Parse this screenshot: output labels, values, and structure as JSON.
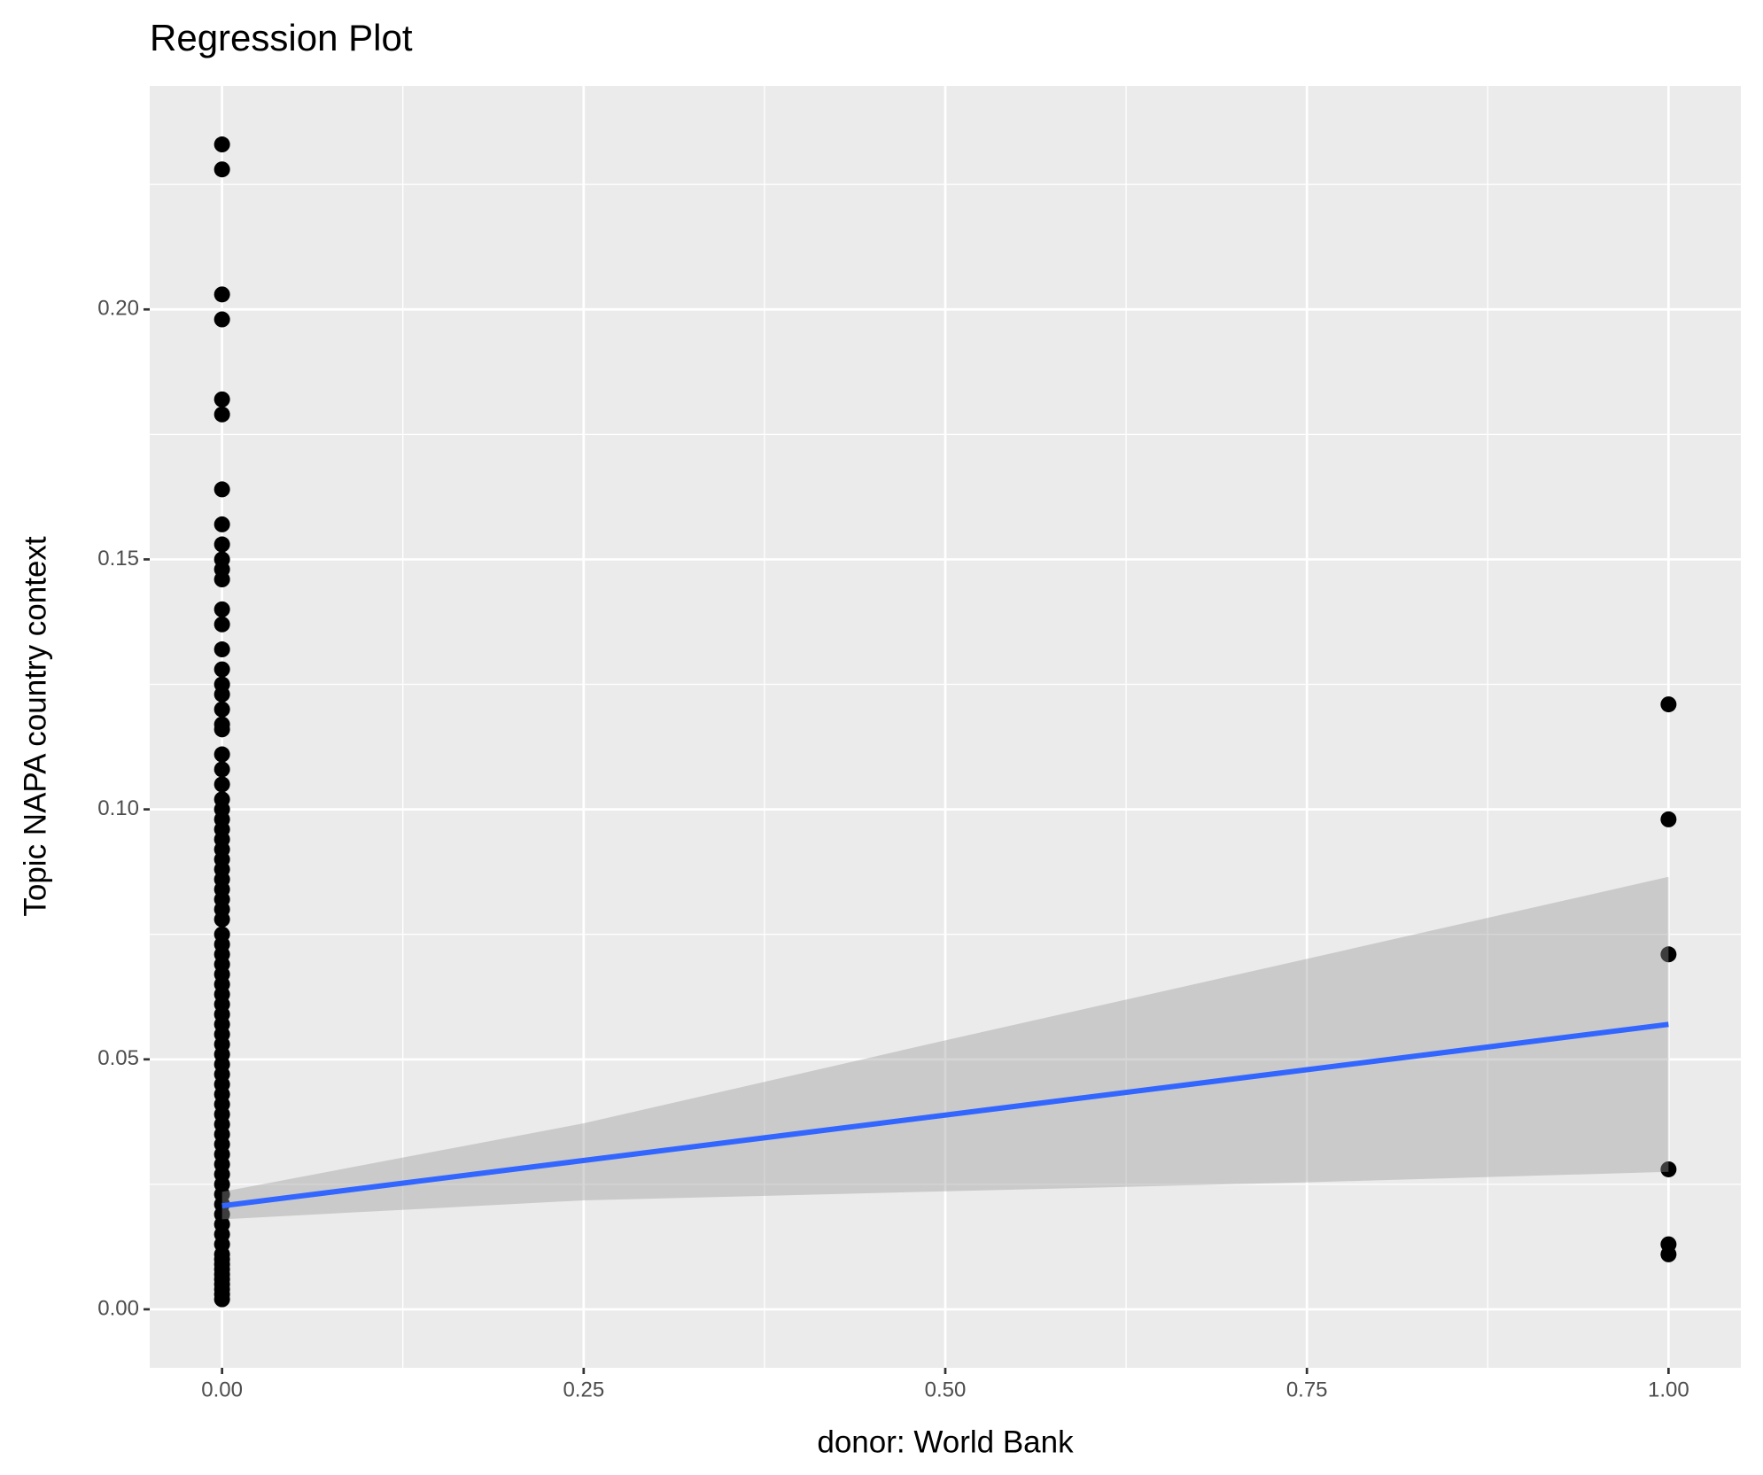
{
  "chart_data": {
    "type": "scatter",
    "title": "Regression Plot",
    "x_label": "donor: World Bank",
    "y_label": "Topic NAPA country context",
    "xlim": [
      -0.05,
      1.05
    ],
    "ylim": [
      -0.0117,
      0.2447
    ],
    "xticks": [
      {
        "value": 0,
        "label": "0.00"
      },
      {
        "value": 0.25,
        "label": "0.25"
      },
      {
        "value": 0.5,
        "label": "0.50"
      },
      {
        "value": 0.75,
        "label": "0.75"
      },
      {
        "value": 1,
        "label": "1.00"
      }
    ],
    "yticks": [
      {
        "value": 0,
        "label": "0.00"
      },
      {
        "value": 0.05,
        "label": "0.05"
      },
      {
        "value": 0.1,
        "label": "0.10"
      },
      {
        "value": 0.15,
        "label": "0.15"
      },
      {
        "value": 0.2,
        "label": "0.20"
      }
    ],
    "xminor": [
      0.125,
      0.375,
      0.625,
      0.875
    ],
    "yminor": [
      0.025,
      0.075,
      0.125,
      0.175,
      0.225
    ],
    "grid": true,
    "points": {
      "color": "#000000",
      "x": [
        0,
        0,
        0,
        0,
        0,
        0,
        0,
        0,
        0,
        0,
        0,
        0,
        0,
        0,
        0,
        0,
        0,
        0,
        0,
        0,
        0,
        0,
        0,
        0,
        0,
        0,
        0,
        0,
        0,
        0,
        0,
        0,
        0,
        0,
        0,
        0,
        0,
        0,
        0,
        0,
        0,
        0,
        0,
        0,
        0,
        0,
        0,
        0,
        0,
        0,
        0,
        0,
        0,
        0,
        0,
        0,
        0,
        0,
        0,
        0,
        0,
        0,
        0,
        0,
        0,
        0,
        0,
        0,
        0,
        0,
        0,
        0,
        0,
        0,
        0,
        0,
        0,
        0,
        0,
        1,
        1,
        1,
        1,
        1,
        1
      ],
      "y": [
        0.233,
        0.228,
        0.203,
        0.198,
        0.182,
        0.179,
        0.164,
        0.157,
        0.153,
        0.15,
        0.148,
        0.146,
        0.14,
        0.137,
        0.132,
        0.128,
        0.125,
        0.123,
        0.12,
        0.117,
        0.116,
        0.111,
        0.108,
        0.105,
        0.102,
        0.1,
        0.098,
        0.096,
        0.094,
        0.092,
        0.09,
        0.088,
        0.086,
        0.084,
        0.082,
        0.08,
        0.078,
        0.075,
        0.073,
        0.071,
        0.069,
        0.067,
        0.065,
        0.063,
        0.061,
        0.059,
        0.057,
        0.055,
        0.053,
        0.051,
        0.049,
        0.047,
        0.045,
        0.043,
        0.041,
        0.039,
        0.037,
        0.035,
        0.033,
        0.031,
        0.029,
        0.027,
        0.025,
        0.023,
        0.021,
        0.019,
        0.017,
        0.015,
        0.013,
        0.011,
        0.01,
        0.009,
        0.008,
        0.007,
        0.006,
        0.005,
        0.004,
        0.003,
        0.002,
        0.121,
        0.098,
        0.071,
        0.028,
        0.013,
        0.011
      ]
    },
    "fit": {
      "color": "#3366ff",
      "x": [
        0,
        1
      ],
      "y": [
        0.0207,
        0.057
      ]
    },
    "band": {
      "color": "#999999",
      "x": [
        0,
        0.25,
        0.5,
        0.75,
        1
      ],
      "lower": [
        0.018,
        0.0218,
        0.0236,
        0.0254,
        0.0275
      ],
      "upper": [
        0.0235,
        0.0372,
        0.0538,
        0.0701,
        0.0865
      ]
    }
  }
}
